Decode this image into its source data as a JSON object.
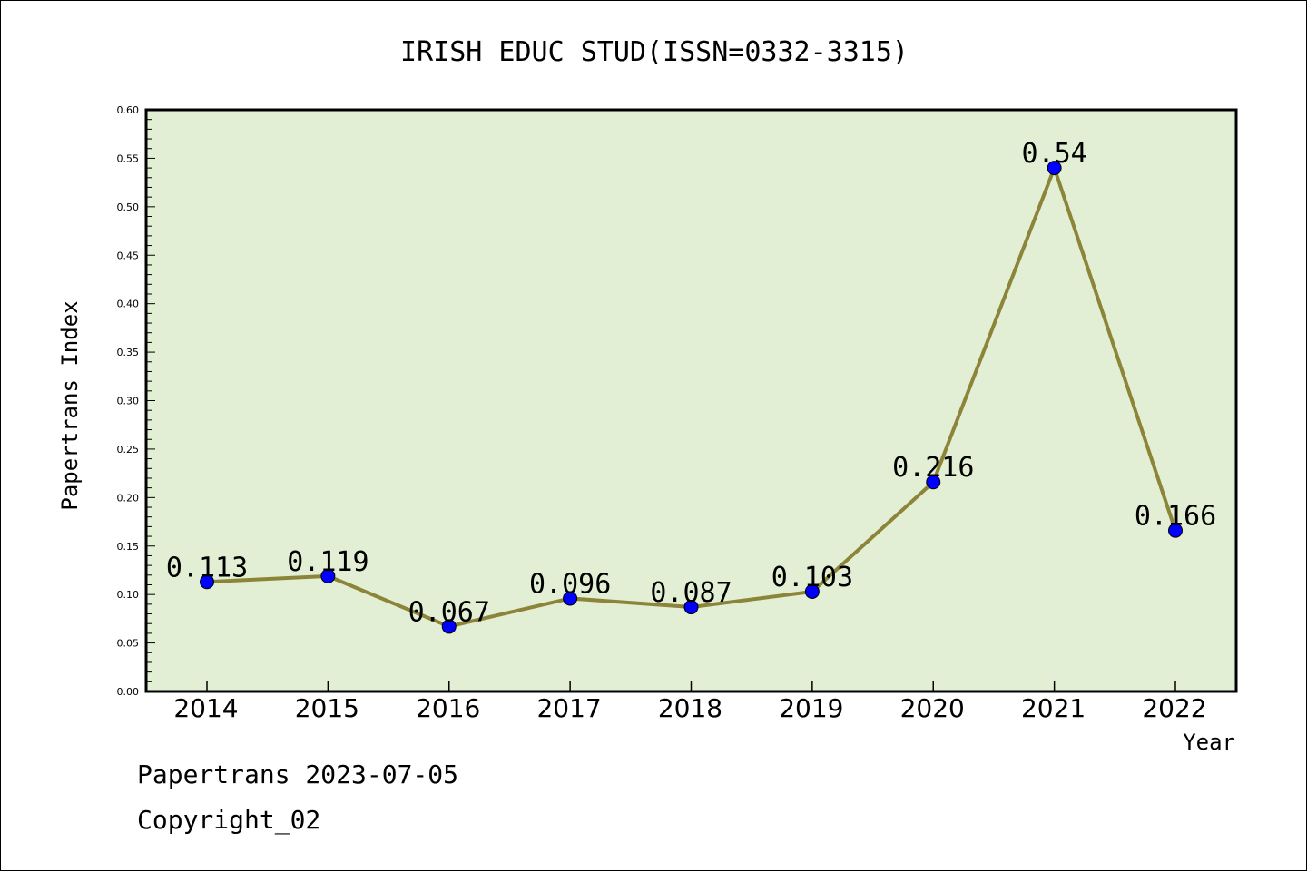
{
  "chart_data": {
    "type": "line",
    "title": "IRISH EDUC STUD(ISSN=0332-3315)",
    "xlabel": "Year",
    "ylabel": "Papertrans Index",
    "categories": [
      "2014",
      "2015",
      "2016",
      "2017",
      "2018",
      "2019",
      "2020",
      "2021",
      "2022"
    ],
    "values": [
      0.113,
      0.119,
      0.067,
      0.096,
      0.087,
      0.103,
      0.216,
      0.54,
      0.166
    ],
    "data_labels": [
      "0.113",
      "0.119",
      "0.067",
      "0.096",
      "0.087",
      "0.103",
      "0.216",
      "0.54",
      "0.166"
    ],
    "ylim": [
      0,
      0.6
    ],
    "yticks": [
      "0.00",
      "0.05",
      "0.10",
      "0.15",
      "0.20",
      "0.25",
      "0.30",
      "0.35",
      "0.40",
      "0.45",
      "0.50",
      "0.55",
      "0.60"
    ],
    "grid": false,
    "colors": {
      "plot_background": "#e2efd4",
      "line": "#8c8438",
      "marker": "#0000ff"
    }
  },
  "footer": {
    "line1": "Papertrans 2023-07-05",
    "line2": "Copyright_02"
  }
}
